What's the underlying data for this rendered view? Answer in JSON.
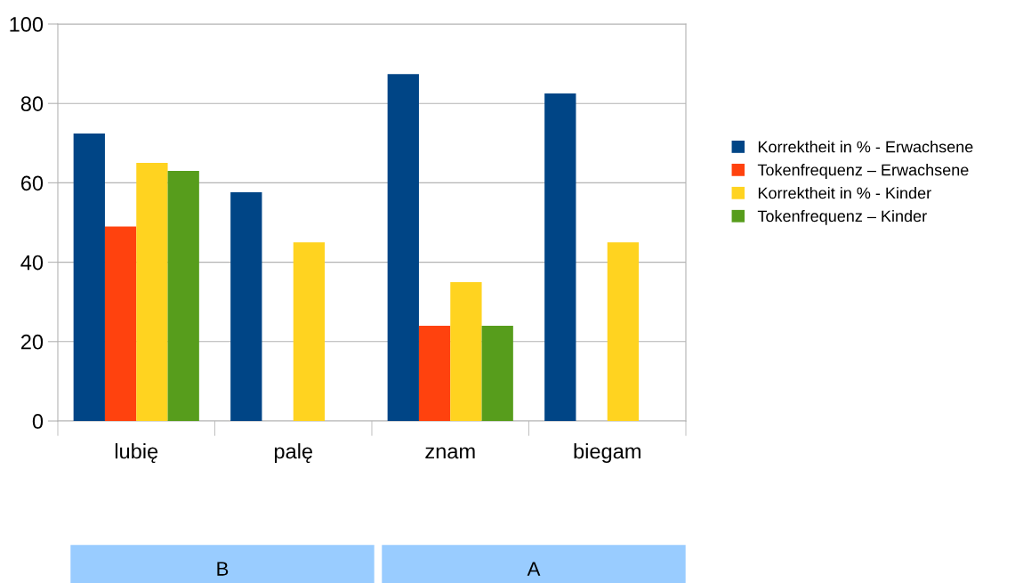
{
  "chart_data": {
    "type": "bar",
    "categories": [
      "lubię",
      "palę",
      "znam",
      "biegam"
    ],
    "series": [
      {
        "name": "Korrektheit in % - Erwachsene",
        "color": "#004586",
        "values": [
          72.4,
          57.6,
          87.4,
          82.5
        ]
      },
      {
        "name": "Tokenfrequenz – Erwachsene",
        "color": "#ff420e",
        "values": [
          49,
          null,
          24,
          null
        ]
      },
      {
        "name": "Korrektheit in % - Kinder",
        "color": "#ffd320",
        "values": [
          65,
          45,
          35,
          45
        ]
      },
      {
        "name": "Tokenfrequenz – Kinder",
        "color": "#579d1c",
        "values": [
          63,
          null,
          24,
          null
        ]
      }
    ],
    "ylim": [
      0,
      100
    ],
    "yticks": [
      0,
      20,
      40,
      60,
      80,
      100
    ],
    "grid": "y",
    "legend": "right",
    "annotations": [
      "B",
      "A"
    ]
  }
}
